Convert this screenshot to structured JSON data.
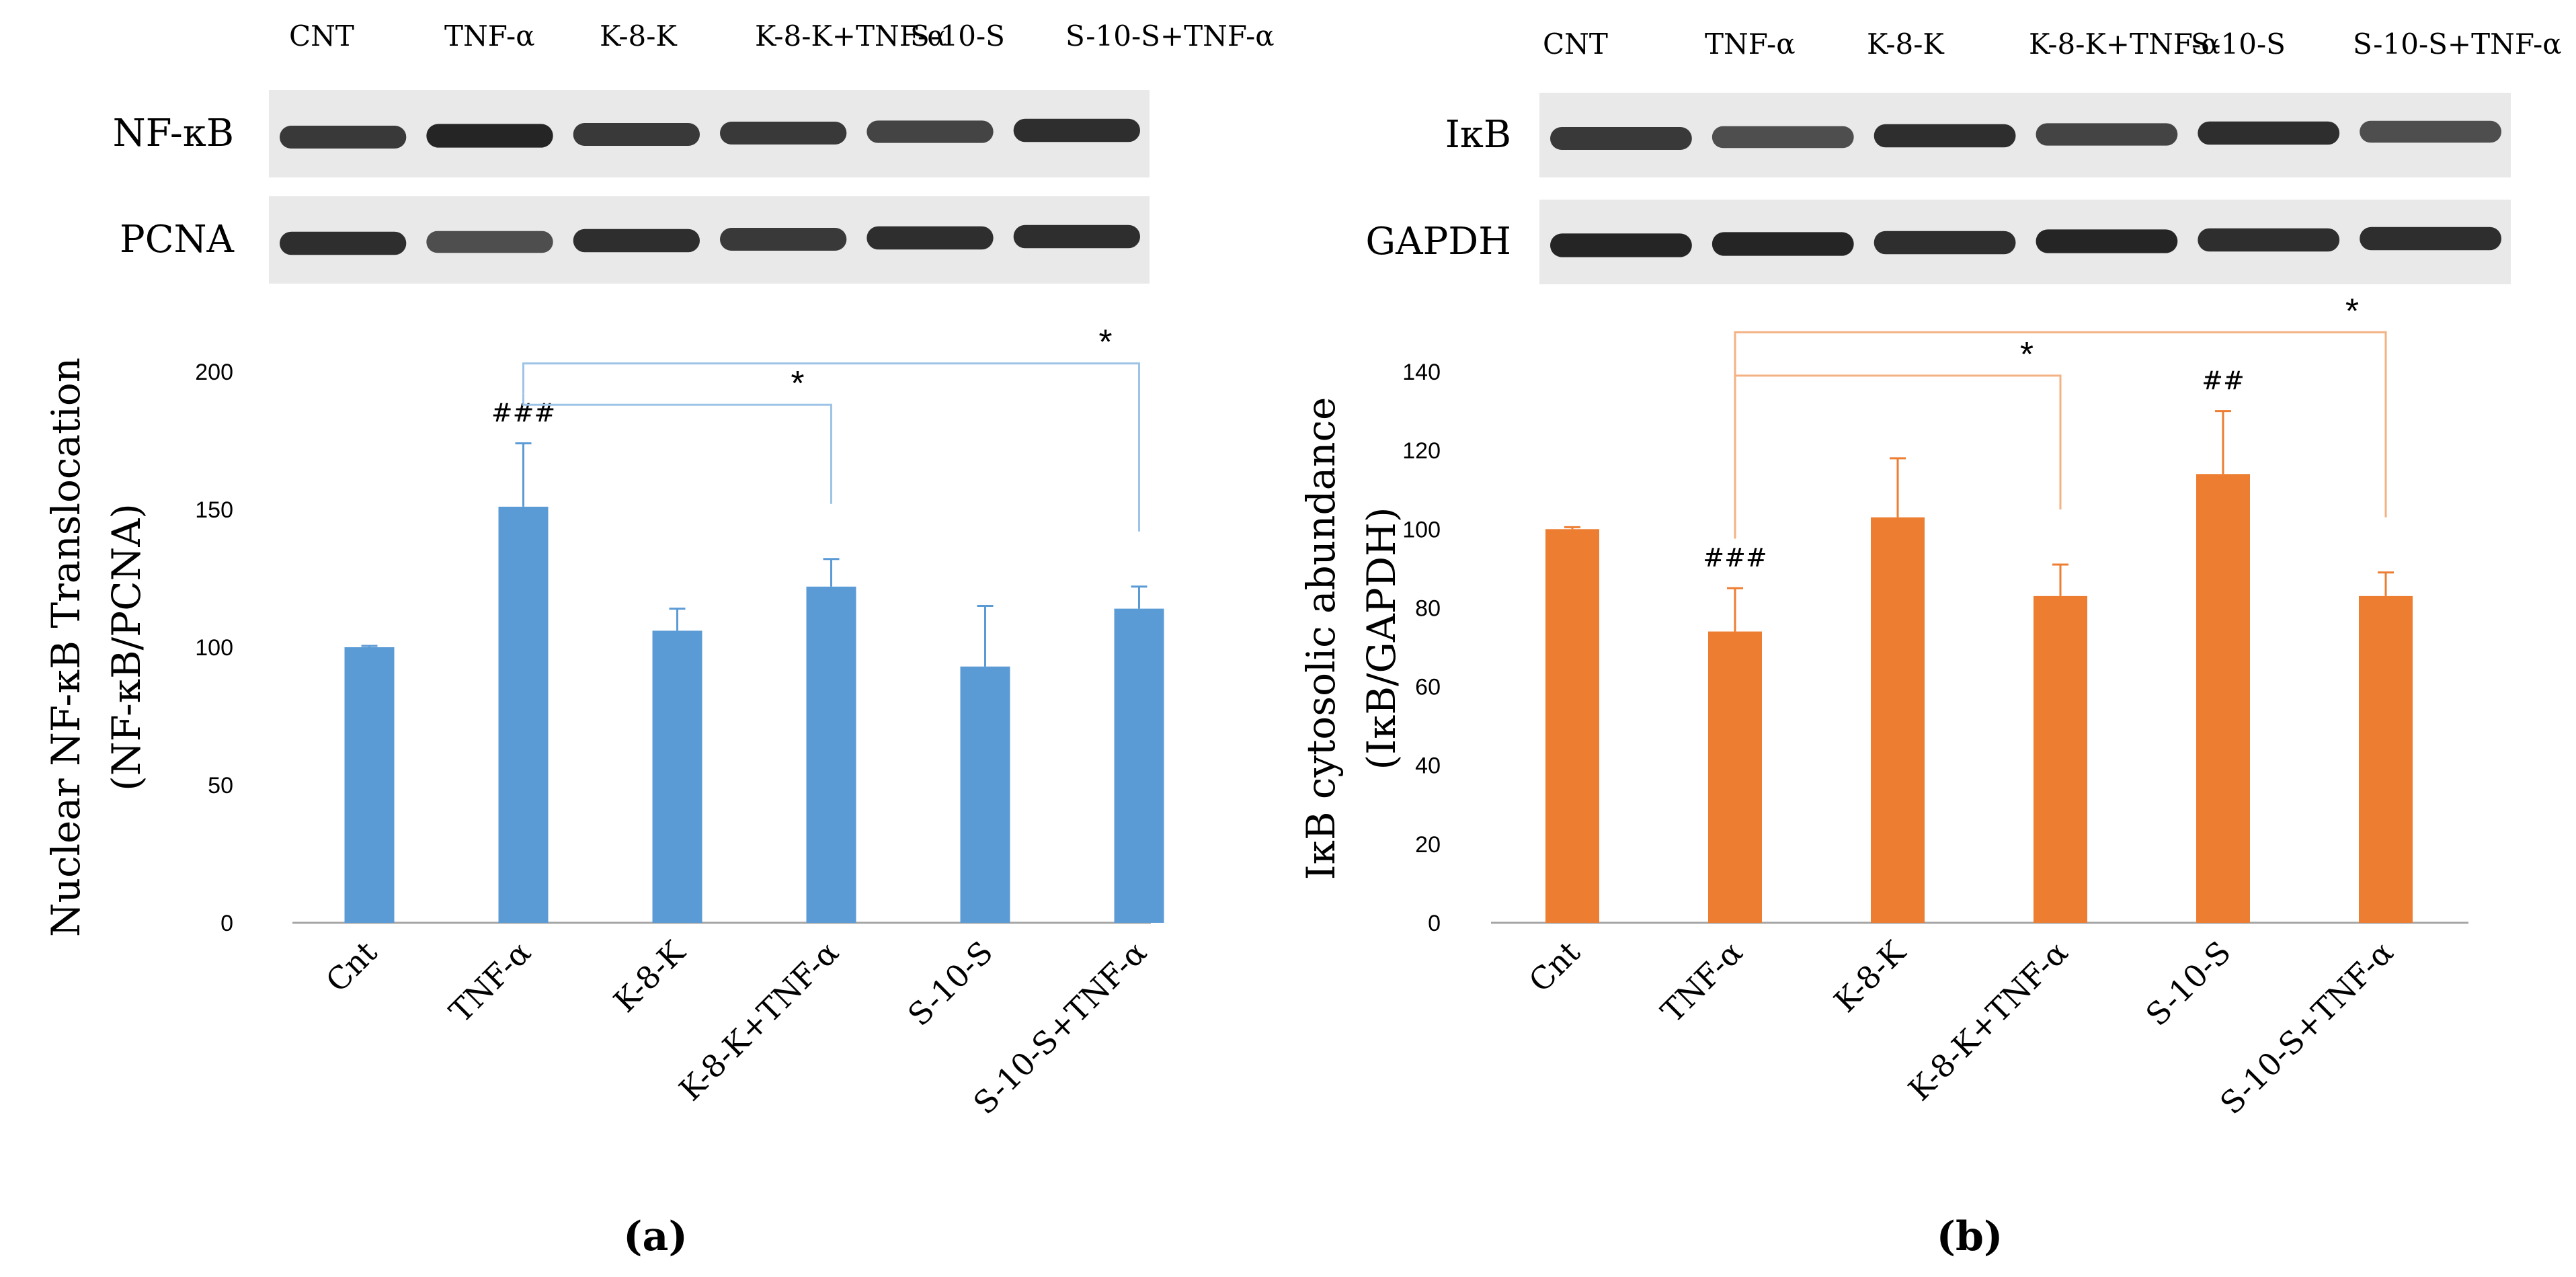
{
  "colors": {
    "panel_a_bar": "#5b9bd5",
    "panel_b_bar": "#ed7d31",
    "panel_a_bracket": "#9dc3e6",
    "panel_b_bracket": "#f4b183",
    "axis": "#a6a6a6",
    "text": "#000000",
    "blot_bg": "#e9e9e9",
    "band": "#1a1a1a"
  },
  "chart_data": [
    {
      "panel": "(a)",
      "type": "bar",
      "categories": [
        "Cnt",
        "TNF-α",
        "K-8-K",
        "K-8-K+TNF-α",
        "S-10-S",
        "S-10-S+TNF-α"
      ],
      "values": [
        100,
        151,
        106,
        122,
        93,
        114
      ],
      "errors": [
        0.5,
        23,
        8,
        10,
        22,
        8
      ],
      "annotations": [
        "",
        "###",
        "",
        "",
        "",
        ""
      ],
      "ylim": [
        0,
        200
      ],
      "yticks": [
        0,
        50,
        100,
        150,
        200
      ],
      "ylabel_line1": "Nuclear NF-κB Translocation",
      "ylabel_line2": "(NF-κB/PCNA)",
      "xlabel": "",
      "panel_label": "(a)",
      "brackets": [
        {
          "from": 1,
          "to": 3,
          "level": 188,
          "label": "*"
        },
        {
          "from": 1,
          "to": 5,
          "level": 203,
          "label": "*"
        }
      ],
      "blot": {
        "lane_labels": [
          "CNT",
          "TNF-α",
          "K-8-K",
          "K-8-K+TNF-α",
          "S-10-S",
          "S-10-S+TNF-α"
        ],
        "rows": [
          {
            "name": "NF-κB",
            "intensity": [
              0.85,
              0.95,
              0.85,
              0.85,
              0.8,
              0.9
            ]
          },
          {
            "name": "PCNA",
            "intensity": [
              0.9,
              0.75,
              0.9,
              0.85,
              0.9,
              0.9
            ]
          }
        ]
      }
    },
    {
      "panel": "(b)",
      "type": "bar",
      "categories": [
        "Cnt",
        "TNF-α",
        "K-8-K",
        "K-8-K+TNF-α",
        "S-10-S",
        "S-10-S+TNF-α"
      ],
      "values": [
        100,
        74,
        103,
        83,
        114,
        83
      ],
      "errors": [
        0.5,
        11,
        15,
        8,
        16,
        6
      ],
      "annotations": [
        "",
        "###",
        "",
        "",
        "##",
        ""
      ],
      "ylim": [
        0,
        140
      ],
      "yticks": [
        0,
        20,
        40,
        60,
        80,
        100,
        120,
        140
      ],
      "ylabel_line1": "IκB cytosolic abundance",
      "ylabel_line2": "(IκB/GAPDH)",
      "xlabel": "",
      "panel_label": "(b)",
      "brackets": [
        {
          "from": 1,
          "to": 3,
          "level": 139,
          "label": "*"
        },
        {
          "from": 1,
          "to": 5,
          "level": 150,
          "label": "*"
        }
      ],
      "blot": {
        "lane_labels": [
          "CNT",
          "TNF-α",
          "K-8-K",
          "K-8-K+TNF-α",
          "S-10-S",
          "S-10-S+TNF-α"
        ],
        "rows": [
          {
            "name": "IκB",
            "intensity": [
              0.85,
              0.75,
              0.9,
              0.8,
              0.9,
              0.75
            ]
          },
          {
            "name": "GAPDH",
            "intensity": [
              0.95,
              0.95,
              0.9,
              0.95,
              0.9,
              0.9
            ]
          }
        ]
      }
    }
  ]
}
